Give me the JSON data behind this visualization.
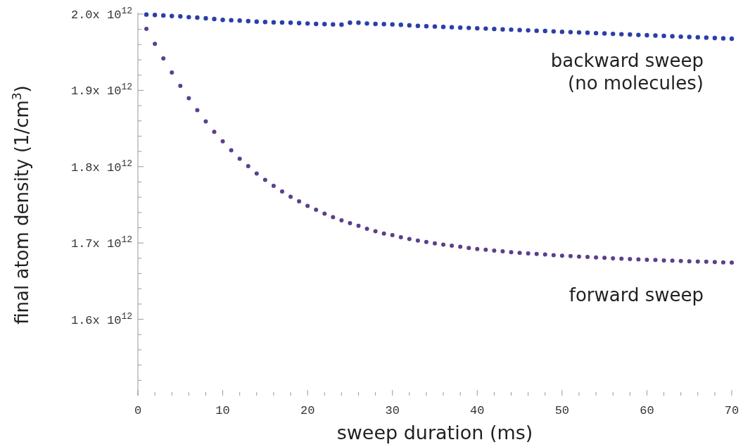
{
  "chart_data": {
    "type": "scatter",
    "xlabel": "sweep duration (ms)",
    "ylabel": "final atom density (1/cm$^{3}$)",
    "marker": "circle",
    "xlim": [
      0,
      70
    ],
    "ylim": [
      1500000000000.0,
      2000000000000.0
    ],
    "xticks": [
      0,
      {
        "value": 2,
        "label": null
      },
      {
        "value": 4,
        "label": null
      },
      {
        "value": 6,
        "label": null
      },
      {
        "value": 8,
        "label": null
      },
      10,
      {
        "value": 12,
        "label": null
      },
      {
        "value": 14,
        "label": null
      },
      {
        "value": 16,
        "label": null
      },
      {
        "value": 18,
        "label": null
      },
      20,
      {
        "value": 22,
        "label": null
      },
      {
        "value": 24,
        "label": null
      },
      {
        "value": 26,
        "label": null
      },
      {
        "value": 28,
        "label": null
      },
      30,
      {
        "value": 32,
        "label": null
      },
      {
        "value": 34,
        "label": null
      },
      {
        "value": 36,
        "label": null
      },
      {
        "value": 38,
        "label": null
      },
      40,
      {
        "value": 42,
        "label": null
      },
      {
        "value": 44,
        "label": null
      },
      {
        "value": 46,
        "label": null
      },
      {
        "value": 48,
        "label": null
      },
      50,
      {
        "value": 52,
        "label": null
      },
      {
        "value": 54,
        "label": null
      },
      {
        "value": 56,
        "label": null
      },
      {
        "value": 58,
        "label": null
      },
      60,
      {
        "value": 62,
        "label": null
      },
      {
        "value": 64,
        "label": null
      },
      {
        "value": 66,
        "label": null
      },
      {
        "value": 68,
        "label": null
      },
      70
    ],
    "yticks": [
      {
        "value": 1520000000000.0,
        "label": null
      },
      {
        "value": 1540000000000.0,
        "label": null
      },
      {
        "value": 1560000000000.0,
        "label": null
      },
      {
        "value": 1580000000000.0,
        "label": null
      },
      {
        "value": 1600000000000.0,
        "label": "1.6x 10$^{12}$"
      },
      {
        "value": 1620000000000.0,
        "label": null
      },
      {
        "value": 1640000000000.0,
        "label": null
      },
      {
        "value": 1660000000000.0,
        "label": null
      },
      {
        "value": 1680000000000.0,
        "label": null
      },
      {
        "value": 1700000000000.0,
        "label": "1.7x 10$^{12}$"
      },
      {
        "value": 1720000000000.0,
        "label": null
      },
      {
        "value": 1740000000000.0,
        "label": null
      },
      {
        "value": 1760000000000.0,
        "label": null
      },
      {
        "value": 1780000000000.0,
        "label": null
      },
      {
        "value": 1800000000000.0,
        "label": "1.8x 10$^{12}$"
      },
      {
        "value": 1820000000000.0,
        "label": null
      },
      {
        "value": 1840000000000.0,
        "label": null
      },
      {
        "value": 1860000000000.0,
        "label": null
      },
      {
        "value": 1880000000000.0,
        "label": null
      },
      {
        "value": 1900000000000.0,
        "label": "1.9x 10$^{12}$"
      },
      {
        "value": 1920000000000.0,
        "label": null
      },
      {
        "value": 1940000000000.0,
        "label": null
      },
      {
        "value": 1960000000000.0,
        "label": null
      },
      {
        "value": 1980000000000.0,
        "label": null
      },
      {
        "value": 2000000000000.0,
        "label": "2.0x 10$^{12}$"
      }
    ],
    "x": [
      1,
      2,
      3,
      4,
      5,
      6,
      7,
      8,
      9,
      10,
      11,
      12,
      13,
      14,
      15,
      16,
      17,
      18,
      19,
      20,
      21,
      22,
      23,
      24,
      25,
      26,
      27,
      28,
      29,
      30,
      31,
      32,
      33,
      34,
      35,
      36,
      37,
      38,
      39,
      40,
      41,
      42,
      43,
      44,
      45,
      46,
      47,
      48,
      49,
      50,
      51,
      52,
      53,
      54,
      55,
      56,
      57,
      58,
      59,
      60,
      61,
      62,
      63,
      64,
      65,
      66,
      67,
      68,
      69,
      70
    ],
    "series": [
      {
        "name": "backward sweep (no molecules)",
        "color": "#2a3fa8",
        "values": [
          1999400000000.0,
          1998800000000.0,
          1998200000000.0,
          1997500000000.0,
          1997000000000.0,
          1996000000000.0,
          1995400000000.0,
          1994500000000.0,
          1993500000000.0,
          1992400000000.0,
          1992000000000.0,
          1991400000000.0,
          1990800000000.0,
          1990100000000.0,
          1989600000000.0,
          1989200000000.0,
          1989000000000.0,
          1988700000000.0,
          1988300000000.0,
          1987700000000.0,
          1987100000000.0,
          1986800000000.0,
          1986500000000.0,
          1986200000000.0,
          1988700000000.0,
          1988700000000.0,
          1987700000000.0,
          1987100000000.0,
          1986800000000.0,
          1986500000000.0,
          1985900000000.0,
          1985300000000.0,
          1984600000000.0,
          1984100000000.0,
          1983700000000.0,
          1983200000000.0,
          1982800000000.0,
          1982300000000.0,
          1981900000000.0,
          1981400000000.0,
          1981000000000.0,
          1980500000000.0,
          1980000000000.0,
          1979600000000.0,
          1979100000000.0,
          1978700000000.0,
          1978200000000.0,
          1977800000000.0,
          1977300000000.0,
          1976800000000.0,
          1976400000000.0,
          1975900000000.0,
          1975500000000.0,
          1975000000000.0,
          1974600000000.0,
          1974100000000.0,
          1973600000000.0,
          1973200000000.0,
          1972700000000.0,
          1972300000000.0,
          1971800000000.0,
          1971400000000.0,
          1970900000000.0,
          1970400000000.0,
          1970000000000.0,
          1969500000000.0,
          1969100000000.0,
          1968600000000.0,
          1968200000000.0,
          1967700000000.0
        ]
      },
      {
        "name": "forward sweep",
        "color": "#5b3f8c",
        "values": [
          1980600000000.0,
          1961000000000.0,
          1941900000000.0,
          1923500000000.0,
          1906000000000.0,
          1889700000000.0,
          1874000000000.0,
          1859300000000.0,
          1845800000000.0,
          1833200000000.0,
          1821500000000.0,
          1810400000000.0,
          1800700000000.0,
          1791100000000.0,
          1782800000000.0,
          1774800000000.0,
          1767500000000.0,
          1760600000000.0,
          1754600000000.0,
          1748700000000.0,
          1743500000000.0,
          1738500000000.0,
          1733900000000.0,
          1729700000000.0,
          1726000000000.0,
          1722600000000.0,
          1718600000000.0,
          1715500000000.0,
          1712400000000.0,
          1710300000000.0,
          1707600000000.0,
          1705300000000.0,
          1703200000000.0,
          1701400000000.0,
          1699500000000.0,
          1697900000000.0,
          1696400000000.0,
          1695000000000.0,
          1693500000000.0,
          1692200000000.0,
          1691100000000.0,
          1690100000000.0,
          1689000000000.0,
          1688000000000.0,
          1687100000000.0,
          1686300000000.0,
          1685600000000.0,
          1684900000000.0,
          1684100000000.0,
          1683400000000.0,
          1682900000000.0,
          1682200000000.0,
          1681700000000.0,
          1681000000000.0,
          1680500000000.0,
          1680000000000.0,
          1679500000000.0,
          1679000000000.0,
          1678500000000.0,
          1678100000000.0,
          1677700000000.0,
          1677200000000.0,
          1676900000000.0,
          1676400000000.0,
          1676000000000.0,
          1675700000000.0,
          1675400000000.0,
          1675000000000.0,
          1674700000000.0,
          1674400000000.0
        ]
      }
    ]
  }
}
